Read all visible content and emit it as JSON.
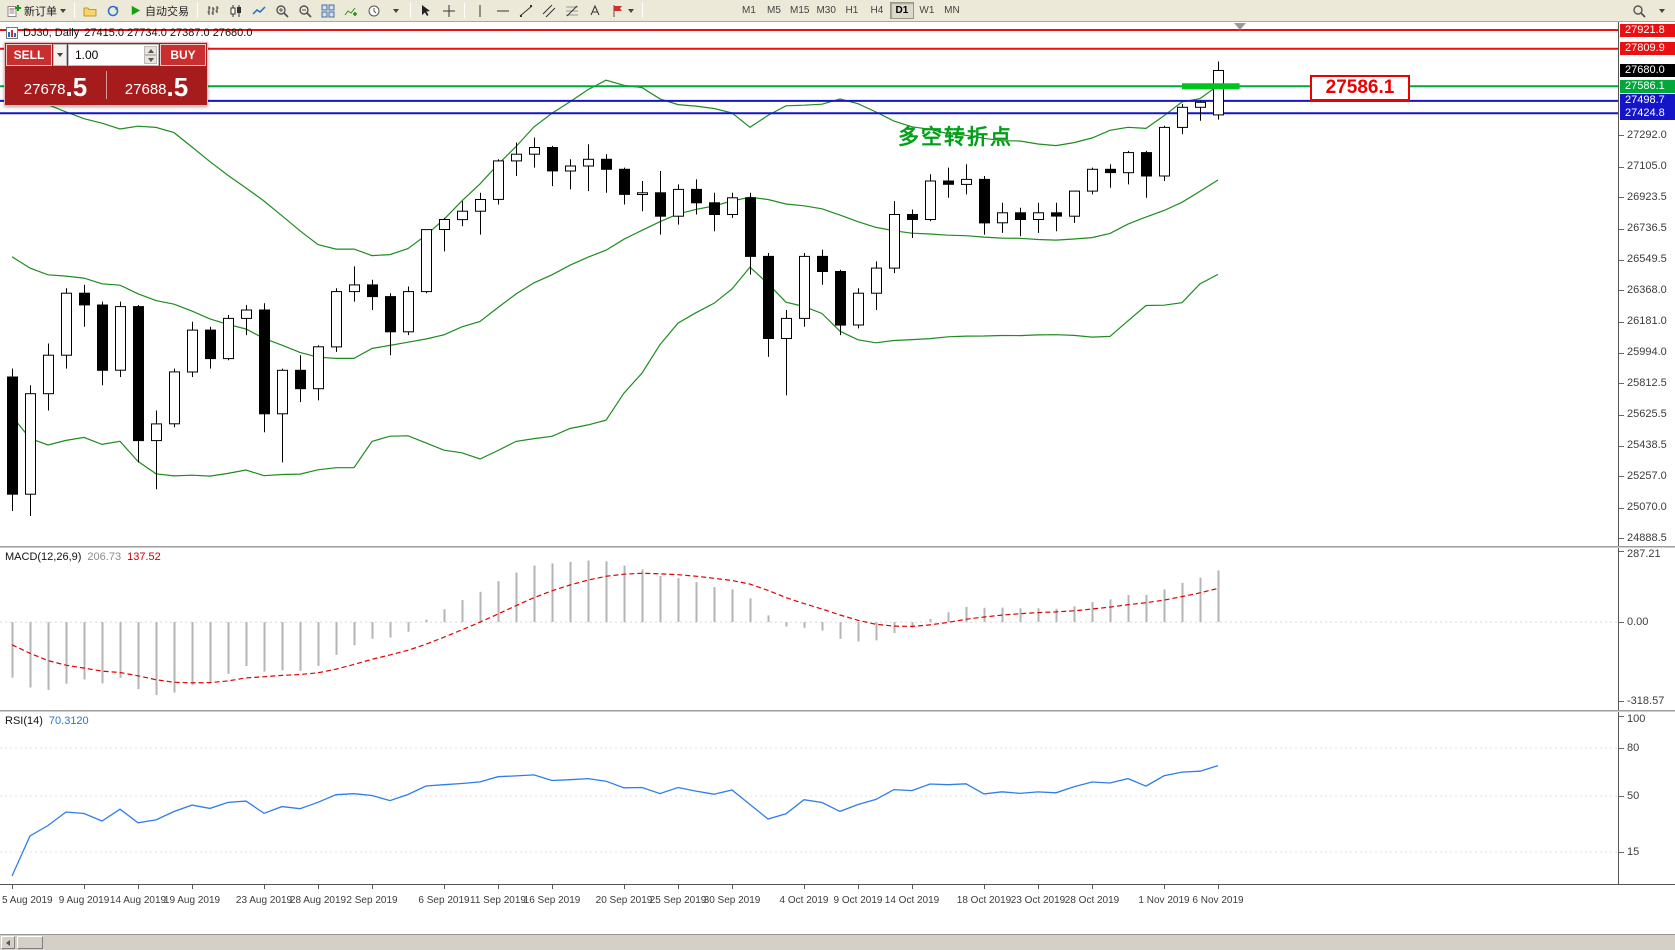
{
  "toolbar": {
    "new_order": "新订单",
    "autotrading": "自动交易",
    "timeframes": [
      "M1",
      "M5",
      "M15",
      "M30",
      "H1",
      "H4",
      "D1",
      "W1",
      "MN"
    ],
    "active_timeframe": "D1"
  },
  "trade_panel": {
    "sell_label": "SELL",
    "buy_label": "BUY",
    "volume": "1.00",
    "sell_price": "27678",
    "sell_price_big": ".5",
    "buy_price": "27688",
    "buy_price_big": ".5"
  },
  "chart": {
    "symbol_period": "DJ30, Daily",
    "ohlc_text": "27415.0 27734.0 27387.0 27680.0",
    "annotation": "多空转折点",
    "big_price_label": "27586.1",
    "current_price": 27680.0,
    "levels": [
      {
        "price": 27921.8,
        "color": "#e81010",
        "width": 2
      },
      {
        "price": 27809.9,
        "color": "#e81010",
        "width": 2
      },
      {
        "price": 27586.1,
        "color": "#00a83a",
        "width": 2
      },
      {
        "price": 27498.7,
        "color": "#1414c8",
        "width": 2
      },
      {
        "price": 27424.8,
        "color": "#1414c8",
        "width": 2
      }
    ],
    "highlight_segment": {
      "x1_bar": 65,
      "x2_bar": 68.2,
      "price": 27586.1,
      "color": "#00c41e",
      "width": 6
    }
  },
  "macd": {
    "name": "MACD(12,26,9)",
    "value": "206.73",
    "signal_value": "137.52",
    "scale": [
      "287.21",
      "0.00",
      "-318.57"
    ]
  },
  "rsi": {
    "name": "RSI(14)",
    "value": "70.3120",
    "scale": [
      "100",
      "80",
      "50",
      "15"
    ]
  },
  "x_axis": {
    "labels": [
      {
        "i": 0,
        "label": "5 Aug 2019"
      },
      {
        "i": 4,
        "label": "9 Aug 2019"
      },
      {
        "i": 7,
        "label": "14 Aug 2019"
      },
      {
        "i": 10,
        "label": "19 Aug 2019"
      },
      {
        "i": 14,
        "label": "23 Aug 2019"
      },
      {
        "i": 17,
        "label": "28 Aug 2019"
      },
      {
        "i": 20,
        "label": "2 Sep 2019"
      },
      {
        "i": 24,
        "label": "6 Sep 2019"
      },
      {
        "i": 27,
        "label": "11 Sep 2019"
      },
      {
        "i": 30,
        "label": "16 Sep 2019"
      },
      {
        "i": 34,
        "label": "20 Sep 2019"
      },
      {
        "i": 37,
        "label": "25 Sep 2019"
      },
      {
        "i": 40,
        "label": "30 Sep 2019"
      },
      {
        "i": 44,
        "label": "4 Oct 2019"
      },
      {
        "i": 47,
        "label": "9 Oct 2019"
      },
      {
        "i": 50,
        "label": "14 Oct 2019"
      },
      {
        "i": 54,
        "label": "18 Oct 2019"
      },
      {
        "i": 57,
        "label": "23 Oct 2019"
      },
      {
        "i": 60,
        "label": "28 Oct 2019"
      },
      {
        "i": 64,
        "label": "1 Nov 2019"
      },
      {
        "i": 67,
        "label": "6 Nov 2019"
      }
    ]
  },
  "chart_data": {
    "type": "candlestick",
    "symbol": "DJ30",
    "period": "Daily",
    "latest_bar": {
      "open": 27415.0,
      "high": 27734.0,
      "low": 27387.0,
      "close": 27680.0
    },
    "axis": {
      "top_price": 27921.8,
      "bottom_price": 24888.5
    },
    "price_ticks": [
      27292.0,
      27105.0,
      26923.5,
      26736.5,
      26549.5,
      26368.0,
      26181.0,
      25994.0,
      25812.5,
      25625.5,
      25438.5,
      25257.0,
      25070.0,
      24888.5
    ],
    "indicators": {
      "bollinger": {
        "period": 20,
        "deviation": 2
      },
      "macd": {
        "fast": 12,
        "slow": 26,
        "signal": 9
      },
      "rsi": {
        "period": 14
      }
    },
    "rsi_levels": [
      80,
      50,
      15
    ],
    "indicator_warmup_closes": [
      26950,
      26900,
      26850,
      26800,
      26750,
      26700,
      26650,
      26600,
      26500,
      26400
    ],
    "candles": [
      [
        25850,
        25900,
        25050,
        25150
      ],
      [
        25150,
        25800,
        25020,
        25750
      ],
      [
        25750,
        26050,
        25650,
        25980
      ],
      [
        25980,
        26380,
        25900,
        26350
      ],
      [
        26350,
        26400,
        26150,
        26280
      ],
      [
        26280,
        26300,
        25800,
        25890
      ],
      [
        25890,
        26300,
        25850,
        26270
      ],
      [
        26270,
        26280,
        25340,
        25470
      ],
      [
        25470,
        25650,
        25180,
        25570
      ],
      [
        25570,
        25900,
        25550,
        25880
      ],
      [
        25880,
        26180,
        25850,
        26130
      ],
      [
        26130,
        26150,
        25900,
        25960
      ],
      [
        25960,
        26220,
        25950,
        26200
      ],
      [
        26200,
        26280,
        26100,
        26250
      ],
      [
        26250,
        26290,
        25520,
        25630
      ],
      [
        25630,
        25900,
        25340,
        25890
      ],
      [
        25890,
        25980,
        25700,
        25780
      ],
      [
        25780,
        26040,
        25710,
        26030
      ],
      [
        26030,
        26380,
        26000,
        26360
      ],
      [
        26360,
        26510,
        26300,
        26400
      ],
      [
        26400,
        26430,
        26250,
        26330
      ],
      [
        26330,
        26350,
        25980,
        26120
      ],
      [
        26120,
        26390,
        26100,
        26360
      ],
      [
        26360,
        26730,
        26350,
        26730
      ],
      [
        26730,
        26800,
        26600,
        26790
      ],
      [
        26790,
        26900,
        26750,
        26840
      ],
      [
        26840,
        26950,
        26700,
        26910
      ],
      [
        26910,
        27150,
        26880,
        27140
      ],
      [
        27140,
        27250,
        27050,
        27180
      ],
      [
        27180,
        27280,
        27100,
        27220
      ],
      [
        27220,
        27230,
        26990,
        27080
      ],
      [
        27080,
        27150,
        26970,
        27110
      ],
      [
        27110,
        27240,
        26960,
        27150
      ],
      [
        27150,
        27180,
        26950,
        27090
      ],
      [
        27090,
        27100,
        26880,
        26940
      ],
      [
        26940,
        27020,
        26840,
        26950
      ],
      [
        26950,
        27080,
        26700,
        26810
      ],
      [
        26810,
        27000,
        26760,
        26970
      ],
      [
        26970,
        27030,
        26820,
        26890
      ],
      [
        26890,
        26950,
        26720,
        26820
      ],
      [
        26820,
        26950,
        26800,
        26920
      ],
      [
        26920,
        26950,
        26460,
        26570
      ],
      [
        26570,
        26590,
        25970,
        26080
      ],
      [
        26080,
        26250,
        25740,
        26200
      ],
      [
        26200,
        26590,
        26150,
        26570
      ],
      [
        26570,
        26610,
        26400,
        26480
      ],
      [
        26480,
        26490,
        26100,
        26160
      ],
      [
        26160,
        26380,
        26140,
        26350
      ],
      [
        26350,
        26540,
        26250,
        26500
      ],
      [
        26500,
        26900,
        26470,
        26820
      ],
      [
        26820,
        26850,
        26680,
        26790
      ],
      [
        26790,
        27060,
        26780,
        27020
      ],
      [
        27020,
        27100,
        26920,
        27000
      ],
      [
        27000,
        27120,
        26940,
        27030
      ],
      [
        27030,
        27050,
        26700,
        26770
      ],
      [
        26770,
        26890,
        26710,
        26830
      ],
      [
        26830,
        26860,
        26690,
        26790
      ],
      [
        26790,
        26890,
        26710,
        26830
      ],
      [
        26830,
        26890,
        26720,
        26810
      ],
      [
        26810,
        26960,
        26770,
        26960
      ],
      [
        26960,
        27100,
        26940,
        27090
      ],
      [
        27090,
        27120,
        26980,
        27070
      ],
      [
        27070,
        27200,
        27000,
        27190
      ],
      [
        27190,
        27200,
        26920,
        27050
      ],
      [
        27050,
        27350,
        27020,
        27340
      ],
      [
        27340,
        27480,
        27300,
        27460
      ],
      [
        27460,
        27500,
        27380,
        27490
      ],
      [
        27415,
        27734,
        27387,
        27680
      ]
    ]
  }
}
